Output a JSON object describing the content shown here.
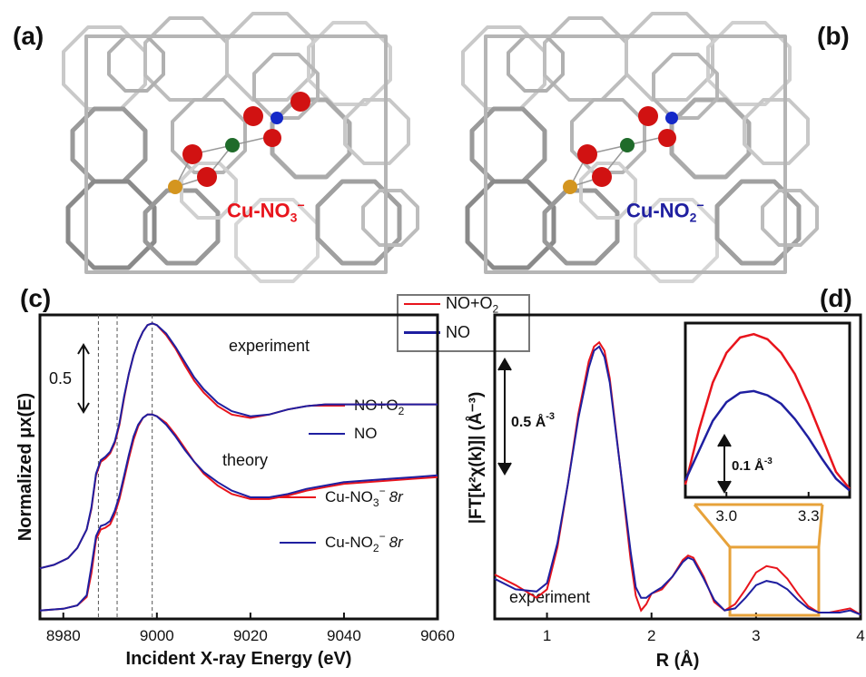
{
  "panels": {
    "a": {
      "label": "(a)",
      "species": "Cu-NO",
      "sub": "3",
      "sup": "−"
    },
    "b": {
      "label": "(b)",
      "species": "Cu-NO",
      "sub": "2",
      "sup": "−"
    },
    "c": {
      "label": "(c)"
    },
    "d": {
      "label": "(d)"
    }
  },
  "top_legend": [
    {
      "text": "NO+O",
      "sub": "2",
      "color": "#e8141c"
    },
    {
      "text": "NO",
      "sub": "",
      "color": "#1f1fa0"
    }
  ],
  "colors": {
    "red": "#e8141c",
    "blue": "#1f1fa0",
    "orange": "#e7a23a",
    "frame": "#777777"
  },
  "chart_data": [
    {
      "type": "line",
      "panel": "c",
      "xlabel": "Incident X-ray Energy (eV)",
      "ylabel": "Normalized μx(E)",
      "xlim": [
        8975,
        9060
      ],
      "xticks": [
        8980,
        9000,
        9020,
        9040,
        9060
      ],
      "scale_bar": "0.5",
      "annotations": [
        "experiment",
        "theory"
      ],
      "dashed_lines_x": [
        8987.5,
        8991.5,
        8999.0
      ],
      "legend_experiment": [
        {
          "text": "NO+O",
          "sub": "2",
          "color": "#e8141c"
        },
        {
          "text": "NO",
          "sub": "",
          "color": "#1f1fa0"
        }
      ],
      "legend_theory": [
        {
          "text": "Cu-NO",
          "sub": "3",
          "sup": "−",
          "italic": "8r",
          "color": "#e8141c"
        },
        {
          "text": "Cu-NO",
          "sub": "2",
          "sup": "−",
          "italic": "8r",
          "color": "#1f1fa0"
        }
      ],
      "series": [
        {
          "name": "NO+O2",
          "group": "experiment",
          "color": "#e8141c",
          "x": [
            8975,
            8978,
            8981,
            8983,
            8985,
            8986,
            8987,
            8988,
            8989,
            8990,
            8991,
            8992,
            8993,
            8994,
            8995,
            8996,
            8997,
            8998,
            8999,
            9000,
            9002,
            9004,
            9006,
            9008,
            9010,
            9013,
            9016,
            9020,
            9024,
            9028,
            9032,
            9036,
            9040,
            9045,
            9050,
            9055,
            9060
          ],
          "y": [
            0.25,
            0.27,
            0.31,
            0.37,
            0.48,
            0.6,
            0.8,
            0.88,
            0.9,
            0.93,
            0.99,
            1.1,
            1.26,
            1.4,
            1.51,
            1.59,
            1.65,
            1.69,
            1.7,
            1.69,
            1.63,
            1.55,
            1.45,
            1.36,
            1.29,
            1.21,
            1.16,
            1.14,
            1.16,
            1.19,
            1.21,
            1.22,
            1.22,
            1.22,
            1.22,
            1.22,
            1.22
          ]
        },
        {
          "name": "NO",
          "group": "experiment",
          "color": "#1f1fa0",
          "x": [
            8975,
            8978,
            8981,
            8983,
            8985,
            8986,
            8987,
            8988,
            8989,
            8990,
            8991,
            8992,
            8993,
            8994,
            8995,
            8996,
            8997,
            8998,
            8999,
            9000,
            9002,
            9004,
            9006,
            9008,
            9010,
            9013,
            9016,
            9020,
            9024,
            9028,
            9032,
            9036,
            9040,
            9045,
            9050,
            9055,
            9060
          ],
          "y": [
            0.25,
            0.27,
            0.31,
            0.37,
            0.48,
            0.61,
            0.81,
            0.89,
            0.91,
            0.94,
            1.0,
            1.11,
            1.27,
            1.4,
            1.51,
            1.59,
            1.65,
            1.69,
            1.7,
            1.69,
            1.64,
            1.56,
            1.47,
            1.38,
            1.31,
            1.23,
            1.18,
            1.15,
            1.16,
            1.19,
            1.21,
            1.22,
            1.22,
            1.22,
            1.22,
            1.22,
            1.22
          ]
        },
        {
          "name": "Cu-NO3- 8r",
          "group": "theory",
          "color": "#e8141c",
          "x": [
            8975,
            8980,
            8983,
            8985,
            8986,
            8987,
            8988,
            8989,
            8990,
            8991,
            8992,
            8993,
            8994,
            8995,
            8996,
            8997,
            8998,
            8999,
            9000,
            9002,
            9004,
            9006,
            9008,
            9010,
            9013,
            9016,
            9020,
            9024,
            9028,
            9032,
            9036,
            9040,
            9045,
            9050,
            9055,
            9060
          ],
          "y": [
            0.0,
            0.01,
            0.03,
            0.08,
            0.22,
            0.42,
            0.48,
            0.49,
            0.51,
            0.57,
            0.66,
            0.78,
            0.9,
            1.01,
            1.09,
            1.14,
            1.16,
            1.16,
            1.15,
            1.11,
            1.04,
            0.96,
            0.88,
            0.81,
            0.74,
            0.69,
            0.66,
            0.66,
            0.68,
            0.71,
            0.73,
            0.75,
            0.76,
            0.77,
            0.78,
            0.79
          ]
        },
        {
          "name": "Cu-NO2- 8r",
          "group": "theory",
          "color": "#1f1fa0",
          "x": [
            8975,
            8980,
            8983,
            8985,
            8986,
            8987,
            8988,
            8989,
            8990,
            8991,
            8992,
            8993,
            8994,
            8995,
            8996,
            8997,
            8998,
            8999,
            9000,
            9002,
            9004,
            9006,
            9008,
            9010,
            9013,
            9016,
            9020,
            9024,
            9028,
            9032,
            9036,
            9040,
            9045,
            9050,
            9055,
            9060
          ],
          "y": [
            0.0,
            0.01,
            0.03,
            0.09,
            0.26,
            0.44,
            0.5,
            0.51,
            0.53,
            0.59,
            0.68,
            0.8,
            0.92,
            1.03,
            1.1,
            1.14,
            1.16,
            1.16,
            1.15,
            1.1,
            1.03,
            0.95,
            0.88,
            0.82,
            0.76,
            0.71,
            0.67,
            0.67,
            0.69,
            0.72,
            0.74,
            0.76,
            0.77,
            0.78,
            0.79,
            0.8
          ]
        }
      ]
    },
    {
      "type": "line",
      "panel": "d",
      "xlabel": "R (Å)",
      "ylabel": "|FT[k²χ(k)]| (Å⁻³)",
      "xlim": [
        0.5,
        4.0
      ],
      "xticks": [
        1,
        2,
        3,
        4
      ],
      "scale_bar": "0.5 Å",
      "scale_bar_sup": "-3",
      "annotations": [
        "experiment"
      ],
      "series": [
        {
          "name": "NO+O2",
          "color": "#e8141c",
          "x": [
            0.5,
            0.7,
            0.9,
            1.0,
            1.1,
            1.2,
            1.3,
            1.4,
            1.45,
            1.5,
            1.55,
            1.6,
            1.7,
            1.8,
            1.85,
            1.9,
            1.95,
            2.0,
            2.1,
            2.2,
            2.3,
            2.35,
            2.4,
            2.5,
            2.6,
            2.7,
            2.8,
            2.9,
            3.0,
            3.1,
            3.2,
            3.3,
            3.4,
            3.5,
            3.6,
            3.7,
            3.8,
            3.9,
            4.0
          ],
          "y": [
            0.19,
            0.14,
            0.08,
            0.12,
            0.32,
            0.62,
            0.95,
            1.2,
            1.27,
            1.29,
            1.25,
            1.12,
            0.7,
            0.26,
            0.09,
            0.02,
            0.05,
            0.1,
            0.12,
            0.18,
            0.26,
            0.28,
            0.27,
            0.18,
            0.06,
            0.02,
            0.05,
            0.12,
            0.2,
            0.23,
            0.22,
            0.17,
            0.1,
            0.04,
            0.01,
            0.01,
            0.02,
            0.03,
            0.0
          ]
        },
        {
          "name": "NO",
          "color": "#1f1fa0",
          "x": [
            0.5,
            0.7,
            0.9,
            1.0,
            1.1,
            1.2,
            1.3,
            1.4,
            1.45,
            1.5,
            1.55,
            1.6,
            1.7,
            1.8,
            1.85,
            1.9,
            1.95,
            2.0,
            2.1,
            2.2,
            2.3,
            2.35,
            2.4,
            2.5,
            2.6,
            2.7,
            2.8,
            2.9,
            3.0,
            3.1,
            3.2,
            3.3,
            3.4,
            3.5,
            3.6,
            3.7,
            3.8,
            3.9,
            4.0
          ],
          "y": [
            0.17,
            0.12,
            0.11,
            0.15,
            0.34,
            0.62,
            0.93,
            1.17,
            1.25,
            1.27,
            1.22,
            1.1,
            0.7,
            0.3,
            0.13,
            0.08,
            0.08,
            0.1,
            0.13,
            0.18,
            0.25,
            0.27,
            0.26,
            0.17,
            0.07,
            0.02,
            0.03,
            0.08,
            0.14,
            0.16,
            0.15,
            0.12,
            0.07,
            0.03,
            0.01,
            0.01,
            0.01,
            0.02,
            0.0
          ]
        }
      ],
      "inset": {
        "xlim": [
          2.85,
          3.45
        ],
        "xticks": [
          "3.0",
          "3.3"
        ],
        "scale_bar": "0.1 Å",
        "scale_bar_sup": "-3",
        "series": [
          {
            "name": "NO+O2",
            "color": "#e8141c",
            "x": [
              2.85,
              2.9,
              2.95,
              3.0,
              3.05,
              3.1,
              3.15,
              3.2,
              3.25,
              3.3,
              3.35,
              3.4,
              3.45
            ],
            "y": [
              0.055,
              0.12,
              0.175,
              0.21,
              0.228,
              0.232,
              0.226,
              0.21,
              0.185,
              0.15,
              0.11,
              0.07,
              0.05
            ]
          },
          {
            "name": "NO",
            "color": "#1f1fa0",
            "x": [
              2.85,
              2.9,
              2.95,
              3.0,
              3.05,
              3.1,
              3.15,
              3.2,
              3.25,
              3.3,
              3.35,
              3.4,
              3.45
            ],
            "y": [
              0.06,
              0.095,
              0.13,
              0.152,
              0.163,
              0.165,
              0.16,
              0.15,
              0.132,
              0.11,
              0.085,
              0.062,
              0.048
            ]
          }
        ]
      }
    }
  ]
}
